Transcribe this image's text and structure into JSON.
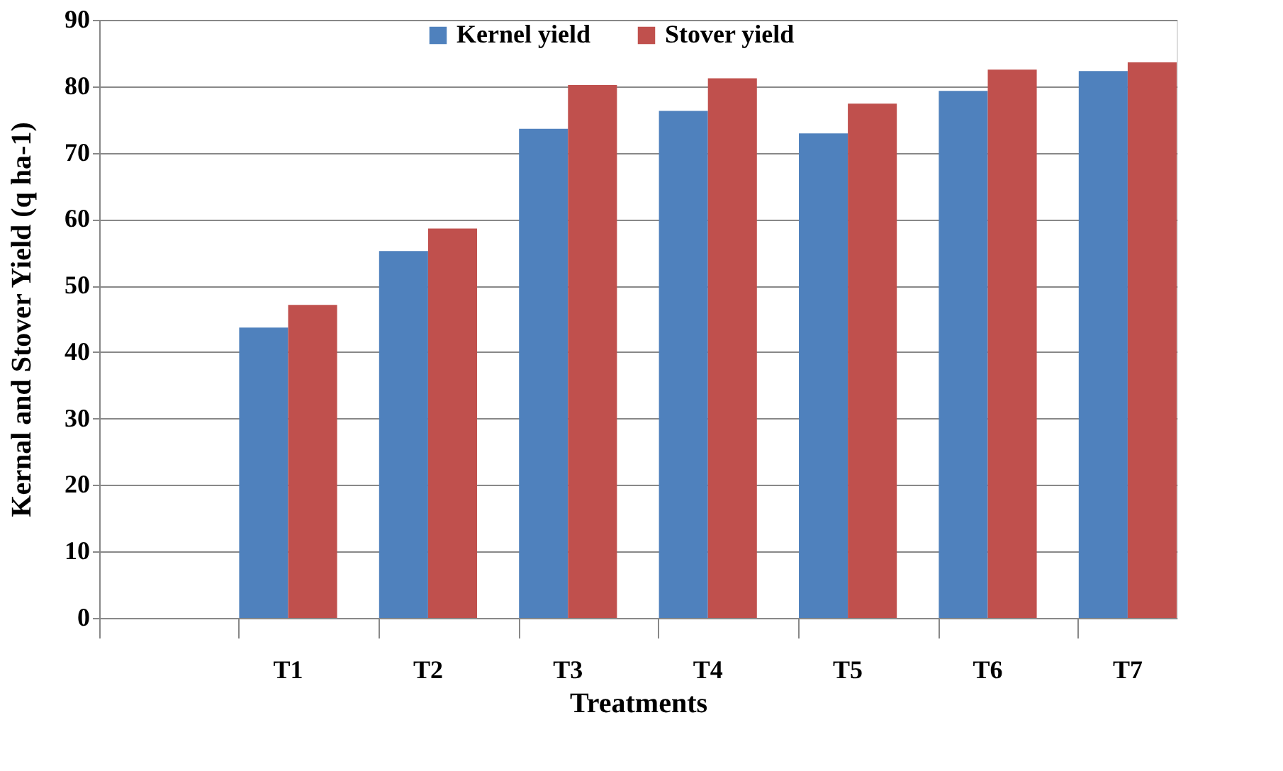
{
  "chart_data": {
    "type": "bar",
    "xlabel": "Treatments",
    "ylabel": "Kernal and Stover Yield (q ha-1)",
    "categories": [
      null,
      "T1",
      "T2",
      "T3",
      "T4",
      "T5",
      "T6",
      "T7"
    ],
    "series": [
      {
        "name": "Kernel yield",
        "color": "#4f81bd",
        "values": [
          null,
          43.7,
          55.2,
          73.6,
          76.3,
          72.9,
          79.3,
          82.3
        ]
      },
      {
        "name": "Stover yield",
        "color": "#c0504d",
        "values": [
          null,
          47.1,
          58.6,
          80.2,
          81.2,
          77.4,
          82.5,
          83.6
        ]
      }
    ],
    "ylim": [
      0,
      90
    ],
    "yticks": [
      0,
      10,
      20,
      30,
      40,
      50,
      60,
      70,
      80,
      90
    ],
    "grid": "y",
    "legend": "top"
  }
}
